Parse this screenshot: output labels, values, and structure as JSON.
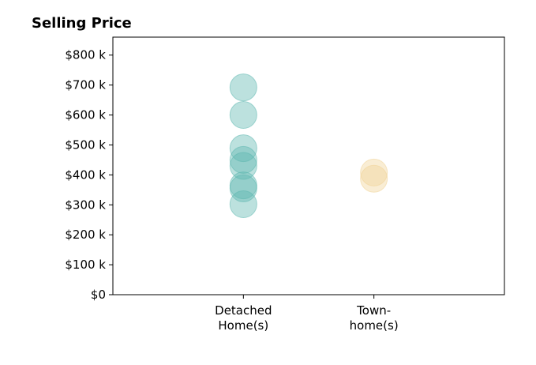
{
  "chart_data": {
    "type": "scatter",
    "title": "Selling Price",
    "xlabel": "",
    "ylabel": "",
    "categories": [
      [
        "Detached",
        "Home(s)"
      ],
      [
        "Town-",
        "home(s)"
      ]
    ],
    "y_ticks": [
      "$0",
      "$100 k",
      "$200 k",
      "$300 k",
      "$400 k",
      "$500 k",
      "$600 k",
      "$700 k",
      "$800 k"
    ],
    "ylim": [
      0,
      860
    ],
    "xlim": [
      -1,
      2
    ],
    "grid": false,
    "series": [
      {
        "category_index": 0,
        "color": "#5fb8b0",
        "values": [
          692,
          600,
          489,
          450,
          430,
          365,
          355,
          302
        ]
      },
      {
        "category_index": 1,
        "color": "#f0d498",
        "values": [
          408,
          387
        ]
      }
    ]
  }
}
